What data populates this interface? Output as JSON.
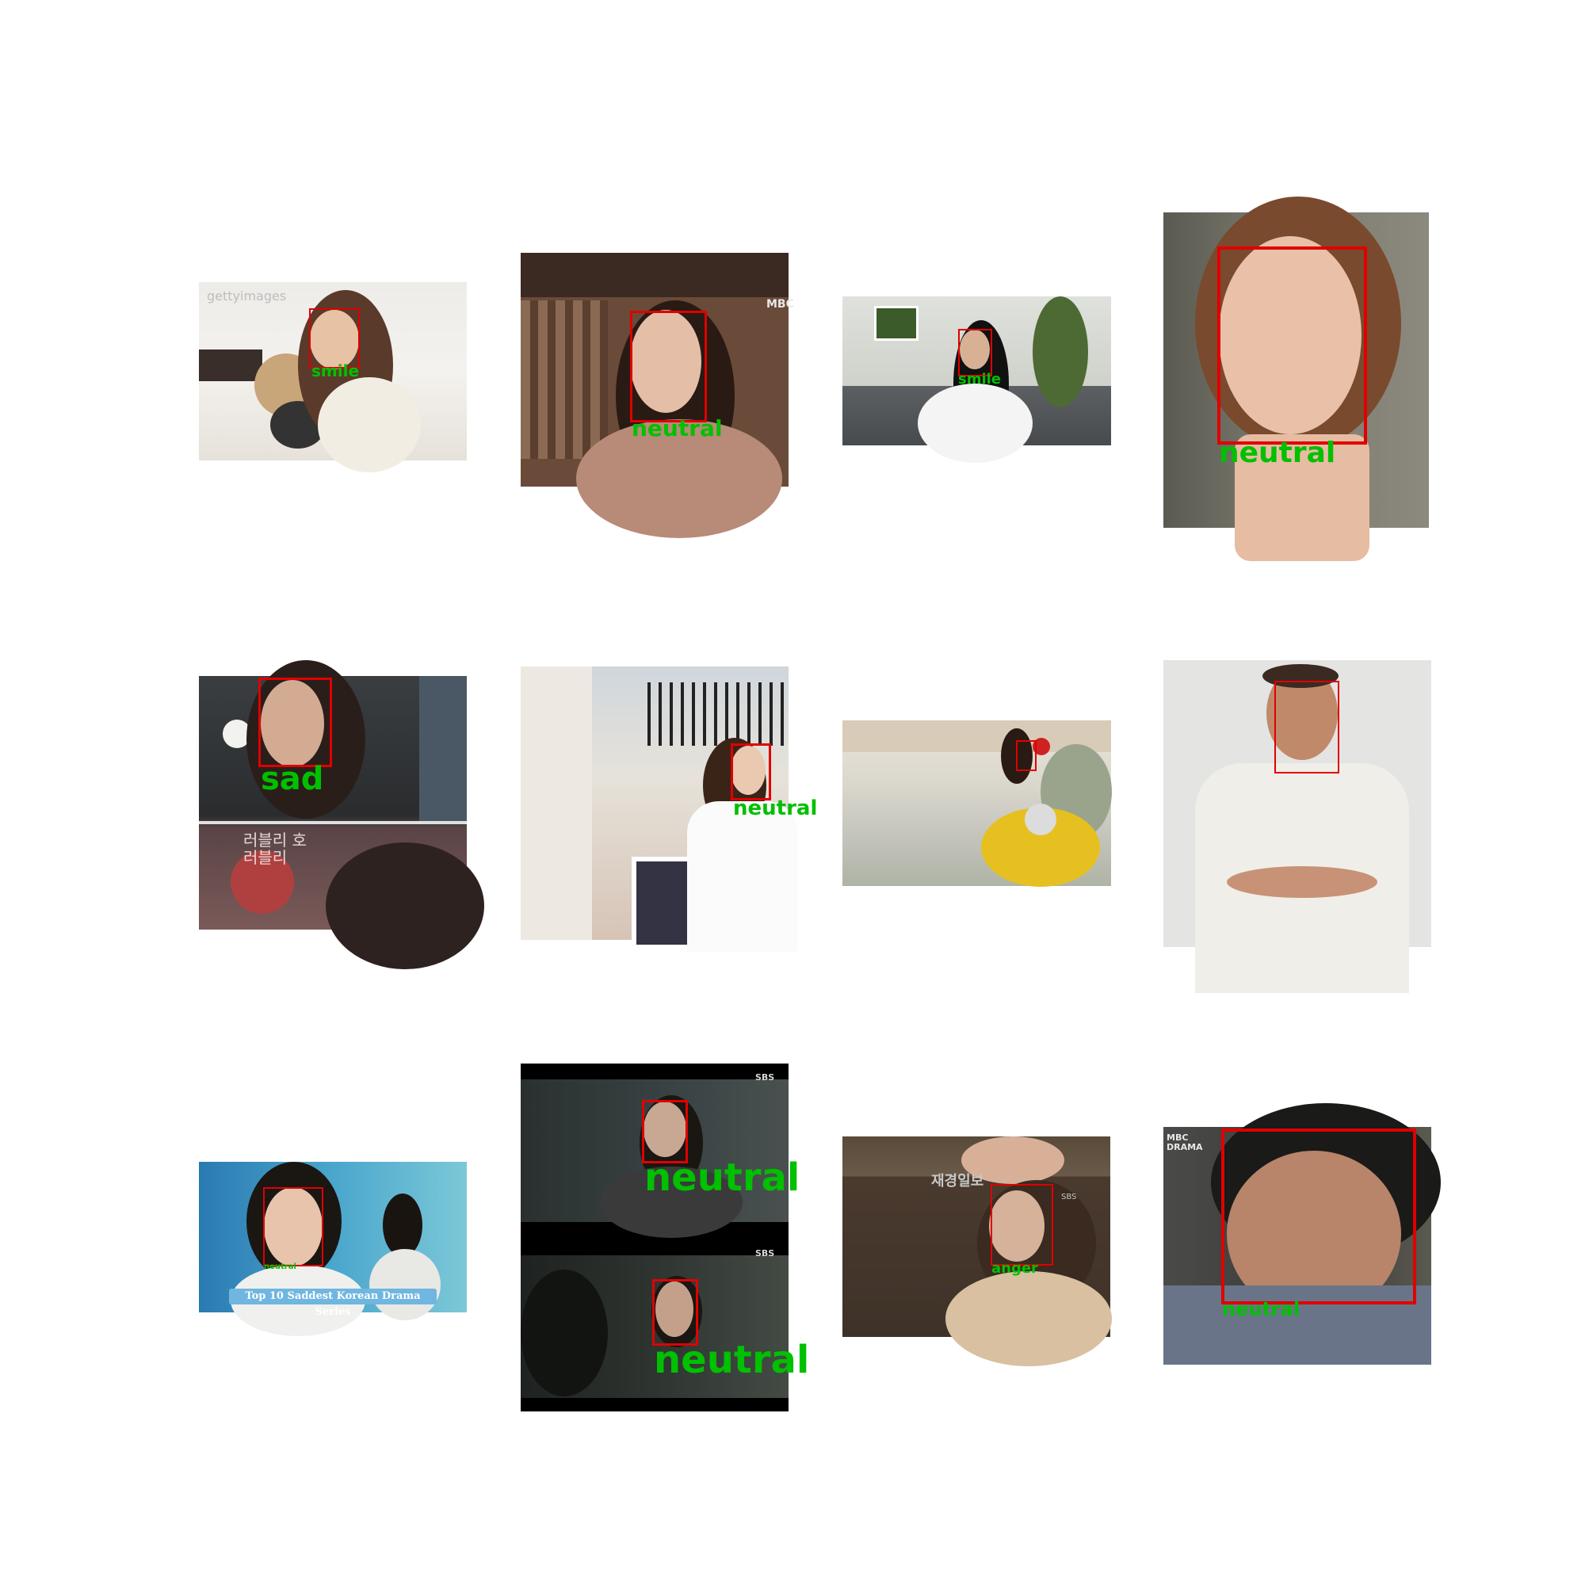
{
  "tiles": [
    {
      "label": "smile",
      "watermark": "gettyimages"
    },
    {
      "label": "neutral",
      "watermark": "MBC"
    },
    {
      "label": "smile"
    },
    {
      "label": "neutral"
    },
    {
      "label": "sad",
      "overlay": "러블리 호러블리"
    },
    {
      "label": "neutral"
    },
    {
      "label": ""
    },
    {
      "label": ""
    },
    {
      "label": "neutral",
      "banner": "Top 10 Saddest Korean Drama Series"
    },
    {
      "labels": [
        "neutral",
        "neutral"
      ],
      "watermark": "SBS"
    },
    {
      "label": "anger",
      "watermark": "재경일보",
      "watermark2": "SBS"
    },
    {
      "label": "neutral",
      "watermark": "MBC DRAMA"
    }
  ],
  "colors": {
    "box": "#e00000",
    "label": "#00c000"
  }
}
